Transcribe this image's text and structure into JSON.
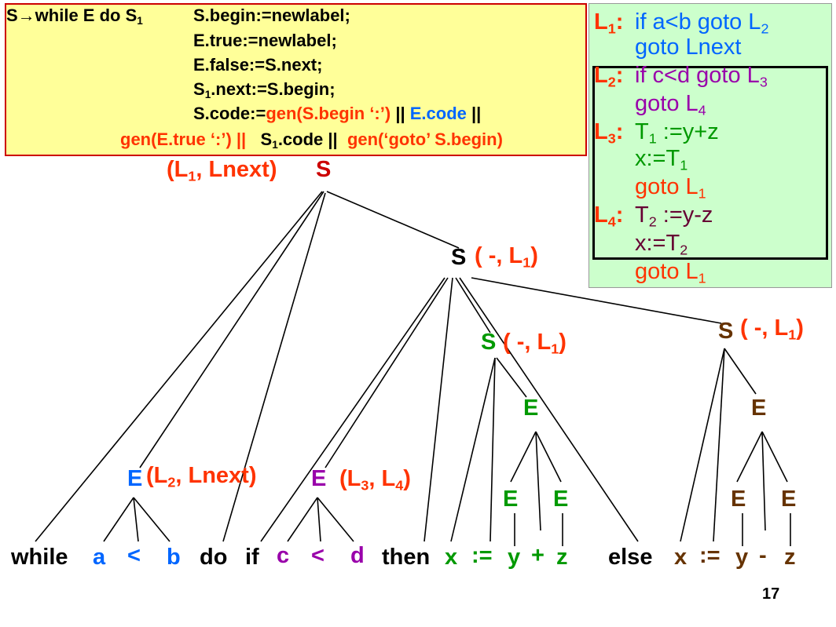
{
  "colors": {
    "red": "#ff3300",
    "darkred": "#cc0000",
    "blue": "#0066ff",
    "purple": "#9900aa",
    "green": "#009900",
    "brown": "#663300",
    "black": "#000000",
    "yellow_bg": "#ffff99",
    "green_bg": "#ccffcc"
  },
  "rule": {
    "head": "S→while E do S",
    "head_sub": "1",
    "l1": "S.begin:=newlabel;",
    "l2": "E.true:=newlabel;",
    "l3": "E.false:=S.next;",
    "l4a": "S",
    "l4s": "1",
    "l4b": ".next:=S.begin;",
    "l5a": "S.code:=",
    "l5b": "gen(S.begin ‘:’)",
    "l5c": " || ",
    "l5d": "E.code",
    "l5e": " ||",
    "l6a": "gen(E.true ‘:’) ||",
    "l6b": "S",
    "l6s": "1",
    "l6c": ".code ||",
    "l6d": "gen(‘goto’  S.begin)"
  },
  "code": {
    "L1_a": "L",
    "L1_s": "1",
    "L1_c": ":",
    "c1": "if a<b goto L",
    "c1_s": "2",
    "c2": "goto Lnext",
    "L2_a": "L",
    "L2_s": "2",
    "L2_c": ":",
    "c3": "if c<d goto L",
    "c3_s": "3",
    "c4": "goto L",
    "c4_s": "4",
    "L3_a": "L",
    "L3_s": "3",
    "L3_c": ":",
    "c5a": "T",
    "c5s": "1",
    "c5b": " :=y+z",
    "c6a": "x:=T",
    "c6s": "1",
    "c7": "goto L",
    "c7_s": "1",
    "L4_a": "L",
    "L4_s": "4",
    "L4_c": ":",
    "c8a": "T",
    "c8s": "2",
    "c8b": " :=y-z",
    "c9a": "x:=T",
    "c9s": "2",
    "c10": "goto L",
    "c10_s": "1"
  },
  "tree": {
    "root_attr_a": "(L",
    "root_attr_s": "1",
    "root_attr_b": ",  Lnext)",
    "root": "S",
    "s1": "S",
    "s1_attr_a": "( -, L",
    "s1_attr_s": "1",
    "s1_attr_b": ")",
    "s2": "S",
    "s2_attr_a": "( -, L",
    "s2_attr_s": "1",
    "s2_attr_b": ")",
    "s3": "S",
    "s3_attr_a": "( -, L",
    "s3_attr_s": "1",
    "s3_attr_b": ")",
    "e1": "E",
    "e1_attr_a": "(L",
    "e1_attr_s": "2",
    "e1_attr_b": ", Lnext)",
    "e2": "E",
    "e2_attr_a": "(L",
    "e2_attr_s": "3",
    "e2_attr_b": ", L",
    "e2_attr_s2": "4",
    "e2_attr_c": ")",
    "e3": "E",
    "e3l": "E",
    "e3r": "E",
    "e4": "E",
    "e4l": "E",
    "e4r": "E"
  },
  "tokens": [
    "while",
    "a",
    "<",
    "b",
    "do",
    "if",
    "c",
    "<",
    "d",
    "then",
    "x",
    ":=",
    "y",
    "+",
    "z",
    "else",
    "x",
    ":=",
    "y",
    "-",
    "z"
  ],
  "page_number": "17"
}
